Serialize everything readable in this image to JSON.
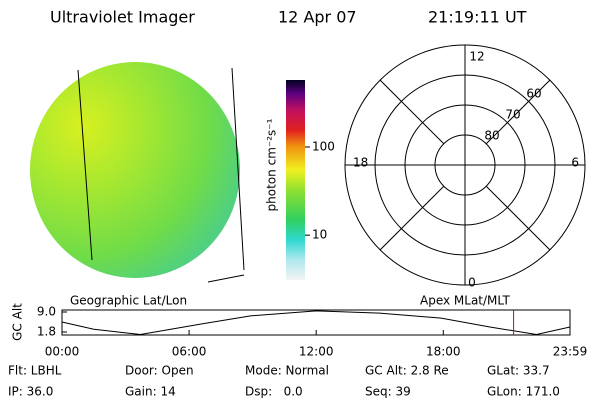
{
  "header": {
    "instrument": "Ultraviolet Imager",
    "date": "12 Apr 07",
    "time": "21:19:11 UT"
  },
  "colorbar": {
    "label": "photon cm⁻²s⁻¹",
    "scale": "log",
    "lim": [
      3.1,
      575
    ],
    "ticks": [
      10,
      100
    ]
  },
  "image_labels": {
    "left": "Geographic Lat/Lon",
    "right": "Apex MLat/MLT"
  },
  "polar": {
    "lat_lim": [
      50,
      90
    ],
    "lat_rings": [
      60,
      70,
      80
    ],
    "mlt_labels": {
      "top": "12",
      "left": "18",
      "right": "6",
      "bottom": "0"
    }
  },
  "altitude_plot": {
    "ylabel": "GC Alt",
    "ylim": [
      0.72,
      9.72
    ],
    "yticks": [
      {
        "value": 9,
        "label": "9.0"
      },
      1.8
    ],
    "xlim": [
      0,
      23.983
    ],
    "xticks": [
      {
        "value": 0,
        "label": "00:00"
      },
      {
        "value": 6,
        "label": "06:00"
      },
      {
        "value": 12,
        "label": "12:00"
      },
      {
        "value": 18,
        "label": "18:00"
      },
      {
        "value": 23.983,
        "label": "23:59"
      }
    ],
    "x": [
      0,
      1.5,
      3.7,
      5,
      6.5,
      8.9,
      12,
      15,
      17.9,
      20.2,
      22.4,
      23.983
    ],
    "values": [
      5.4,
      2.8,
      0.9,
      2.6,
      4.6,
      7.6,
      9.4,
      8.6,
      6.8,
      3.6,
      0.9,
      3.6
    ],
    "marker": 21.32,
    "marker_color": "#e00000"
  },
  "footer": {
    "rows": [
      [
        "Flt: LBHL",
        "Door: Open",
        "Mode: Normal",
        "GC Alt: 2.8 Re",
        "GLat: 33.7"
      ],
      [
        "IP: 36.0",
        "Gain: 14",
        "Dsp:   0.0",
        "Seq: 39",
        "GLon: 171.0"
      ]
    ]
  }
}
